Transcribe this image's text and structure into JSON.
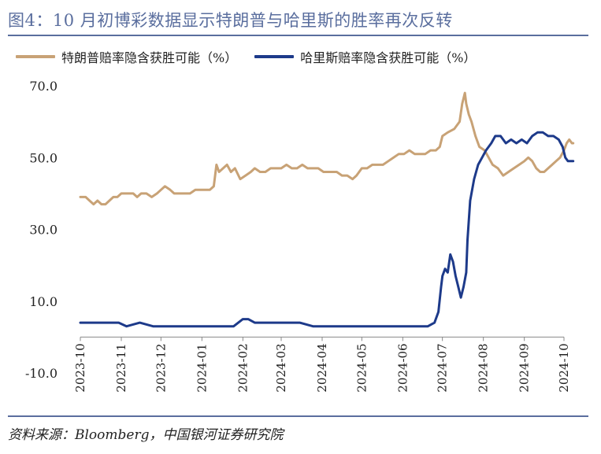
{
  "title": "图4：10 月初博彩数据显示特朗普与哈里斯的胜率再次反转",
  "source": "资料来源：Bloomberg，中国银河证券研究院",
  "colors": {
    "trump": "#c8a276",
    "harris": "#1d3a8a",
    "accent": "#5a6e9e"
  },
  "chart_data": {
    "type": "line",
    "title": "图4：10 月初博彩数据显示特朗普与哈里斯的胜率再次反转",
    "xlabel": "",
    "ylabel": "",
    "ylim": [
      -10,
      70
    ],
    "y_ticks": [
      "70.0",
      "50.0",
      "30.0",
      "10.0",
      "-10.0"
    ],
    "x_ticks": [
      "2023-10",
      "2023-11",
      "2023-12",
      "2024-01",
      "2024-02",
      "2024-03",
      "2024-04",
      "2024-05",
      "2024-06",
      "2024-07",
      "2024-08",
      "2024-09",
      "2024-10"
    ],
    "grid": false,
    "legend_placement": "top",
    "series": [
      {
        "name": "特朗普赔率隐含获胜可能（%）",
        "color": "#c8a276",
        "points": [
          [
            "2023-10-01",
            39
          ],
          [
            "2023-10-05",
            39
          ],
          [
            "2023-10-08",
            38
          ],
          [
            "2023-10-11",
            37
          ],
          [
            "2023-10-14",
            38
          ],
          [
            "2023-10-17",
            37
          ],
          [
            "2023-10-20",
            37
          ],
          [
            "2023-10-23",
            38
          ],
          [
            "2023-10-26",
            39
          ],
          [
            "2023-10-29",
            39
          ],
          [
            "2023-11-01",
            40
          ],
          [
            "2023-11-06",
            40
          ],
          [
            "2023-11-10",
            40
          ],
          [
            "2023-11-13",
            39
          ],
          [
            "2023-11-16",
            40
          ],
          [
            "2023-11-20",
            40
          ],
          [
            "2023-11-24",
            39
          ],
          [
            "2023-11-28",
            40
          ],
          [
            "2023-12-01",
            41
          ],
          [
            "2023-12-04",
            42
          ],
          [
            "2023-12-08",
            41
          ],
          [
            "2023-12-11",
            40
          ],
          [
            "2023-12-15",
            40
          ],
          [
            "2023-12-19",
            40
          ],
          [
            "2023-12-23",
            40
          ],
          [
            "2023-12-27",
            41
          ],
          [
            "2023-12-30",
            41
          ],
          [
            "2024-01-03",
            41
          ],
          [
            "2024-01-07",
            41
          ],
          [
            "2024-01-10",
            42
          ],
          [
            "2024-01-12",
            48
          ],
          [
            "2024-01-14",
            46
          ],
          [
            "2024-01-17",
            47
          ],
          [
            "2024-01-20",
            48
          ],
          [
            "2024-01-23",
            46
          ],
          [
            "2024-01-26",
            47
          ],
          [
            "2024-01-30",
            44
          ],
          [
            "2024-02-03",
            45
          ],
          [
            "2024-02-07",
            46
          ],
          [
            "2024-02-10",
            47
          ],
          [
            "2024-02-14",
            46
          ],
          [
            "2024-02-18",
            46
          ],
          [
            "2024-02-22",
            47
          ],
          [
            "2024-02-26",
            47
          ],
          [
            "2024-03-01",
            47
          ],
          [
            "2024-03-05",
            48
          ],
          [
            "2024-03-09",
            47
          ],
          [
            "2024-03-13",
            47
          ],
          [
            "2024-03-17",
            48
          ],
          [
            "2024-03-21",
            47
          ],
          [
            "2024-03-25",
            47
          ],
          [
            "2024-03-29",
            47
          ],
          [
            "2024-04-02",
            46
          ],
          [
            "2024-04-07",
            46
          ],
          [
            "2024-04-12",
            46
          ],
          [
            "2024-04-16",
            45
          ],
          [
            "2024-04-20",
            45
          ],
          [
            "2024-04-24",
            44
          ],
          [
            "2024-04-27",
            45
          ],
          [
            "2024-05-01",
            47
          ],
          [
            "2024-05-05",
            47
          ],
          [
            "2024-05-09",
            48
          ],
          [
            "2024-05-13",
            48
          ],
          [
            "2024-05-17",
            48
          ],
          [
            "2024-05-21",
            49
          ],
          [
            "2024-05-25",
            50
          ],
          [
            "2024-05-29",
            51
          ],
          [
            "2024-06-02",
            51
          ],
          [
            "2024-06-06",
            52
          ],
          [
            "2024-06-10",
            51
          ],
          [
            "2024-06-14",
            51
          ],
          [
            "2024-06-18",
            51
          ],
          [
            "2024-06-22",
            52
          ],
          [
            "2024-06-26",
            52
          ],
          [
            "2024-06-29",
            53
          ],
          [
            "2024-07-01",
            56
          ],
          [
            "2024-07-05",
            57
          ],
          [
            "2024-07-10",
            58
          ],
          [
            "2024-07-14",
            60
          ],
          [
            "2024-07-16",
            65
          ],
          [
            "2024-07-18",
            68
          ],
          [
            "2024-07-19",
            65
          ],
          [
            "2024-07-21",
            62
          ],
          [
            "2024-07-23",
            60
          ],
          [
            "2024-07-26",
            56
          ],
          [
            "2024-07-29",
            53
          ],
          [
            "2024-08-02",
            52
          ],
          [
            "2024-08-05",
            50
          ],
          [
            "2024-08-08",
            48
          ],
          [
            "2024-08-12",
            47
          ],
          [
            "2024-08-16",
            45
          ],
          [
            "2024-08-20",
            46
          ],
          [
            "2024-08-24",
            47
          ],
          [
            "2024-08-28",
            48
          ],
          [
            "2024-09-01",
            49
          ],
          [
            "2024-09-04",
            50
          ],
          [
            "2024-09-07",
            49
          ],
          [
            "2024-09-10",
            47
          ],
          [
            "2024-09-13",
            46
          ],
          [
            "2024-09-16",
            46
          ],
          [
            "2024-09-19",
            47
          ],
          [
            "2024-09-22",
            48
          ],
          [
            "2024-09-25",
            49
          ],
          [
            "2024-09-28",
            50
          ],
          [
            "2024-10-01",
            52
          ],
          [
            "2024-10-03",
            54
          ],
          [
            "2024-10-05",
            55
          ],
          [
            "2024-10-07",
            54
          ],
          [
            "2024-10-08",
            54
          ]
        ]
      },
      {
        "name": "哈里斯赔率隐含获胜可能（%）",
        "color": "#1d3a8a",
        "points": [
          [
            "2023-10-01",
            4
          ],
          [
            "2023-10-10",
            4
          ],
          [
            "2023-10-20",
            4
          ],
          [
            "2023-10-30",
            4
          ],
          [
            "2023-11-05",
            3
          ],
          [
            "2023-11-15",
            4
          ],
          [
            "2023-11-25",
            3
          ],
          [
            "2023-12-05",
            3
          ],
          [
            "2023-12-15",
            3
          ],
          [
            "2023-12-25",
            3
          ],
          [
            "2024-01-05",
            3
          ],
          [
            "2024-01-15",
            3
          ],
          [
            "2024-01-25",
            3
          ],
          [
            "2024-02-01",
            5
          ],
          [
            "2024-02-05",
            5
          ],
          [
            "2024-02-10",
            4
          ],
          [
            "2024-02-15",
            4
          ],
          [
            "2024-02-25",
            4
          ],
          [
            "2024-03-05",
            4
          ],
          [
            "2024-03-15",
            4
          ],
          [
            "2024-03-25",
            3
          ],
          [
            "2024-04-05",
            3
          ],
          [
            "2024-04-15",
            3
          ],
          [
            "2024-04-25",
            3
          ],
          [
            "2024-05-05",
            3
          ],
          [
            "2024-05-15",
            3
          ],
          [
            "2024-05-25",
            3
          ],
          [
            "2024-06-05",
            3
          ],
          [
            "2024-06-15",
            3
          ],
          [
            "2024-06-20",
            3
          ],
          [
            "2024-06-25",
            4
          ],
          [
            "2024-06-28",
            7
          ],
          [
            "2024-06-30",
            14
          ],
          [
            "2024-07-01",
            17
          ],
          [
            "2024-07-03",
            19
          ],
          [
            "2024-07-05",
            18
          ],
          [
            "2024-07-07",
            23
          ],
          [
            "2024-07-09",
            21
          ],
          [
            "2024-07-11",
            17
          ],
          [
            "2024-07-13",
            14
          ],
          [
            "2024-07-15",
            11
          ],
          [
            "2024-07-17",
            14
          ],
          [
            "2024-07-19",
            18
          ],
          [
            "2024-07-20",
            27
          ],
          [
            "2024-07-22",
            38
          ],
          [
            "2024-07-25",
            44
          ],
          [
            "2024-07-28",
            48
          ],
          [
            "2024-07-31",
            50
          ],
          [
            "2024-08-03",
            52
          ],
          [
            "2024-08-07",
            54
          ],
          [
            "2024-08-10",
            56
          ],
          [
            "2024-08-14",
            56
          ],
          [
            "2024-08-18",
            54
          ],
          [
            "2024-08-22",
            55
          ],
          [
            "2024-08-26",
            54
          ],
          [
            "2024-08-30",
            55
          ],
          [
            "2024-09-03",
            54
          ],
          [
            "2024-09-07",
            56
          ],
          [
            "2024-09-11",
            57
          ],
          [
            "2024-09-15",
            57
          ],
          [
            "2024-09-19",
            56
          ],
          [
            "2024-09-23",
            56
          ],
          [
            "2024-09-27",
            55
          ],
          [
            "2024-09-30",
            53
          ],
          [
            "2024-10-02",
            50
          ],
          [
            "2024-10-04",
            49
          ],
          [
            "2024-10-06",
            49
          ],
          [
            "2024-10-08",
            49
          ]
        ]
      }
    ]
  }
}
